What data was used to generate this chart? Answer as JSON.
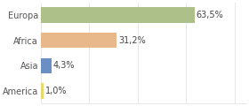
{
  "categories": [
    "Europa",
    "Africa",
    "Asia",
    "America"
  ],
  "values": [
    63.5,
    31.2,
    4.3,
    1.0
  ],
  "labels": [
    "63,5%",
    "31,2%",
    "4,3%",
    "1,0%"
  ],
  "bar_colors": [
    "#adc08a",
    "#e8b88a",
    "#6b8fc4",
    "#e8d870"
  ],
  "background_color": "#ffffff",
  "xlim": [
    0,
    85
  ],
  "label_fontsize": 7.0,
  "tick_fontsize": 7.0,
  "grid_color": "#dddddd"
}
